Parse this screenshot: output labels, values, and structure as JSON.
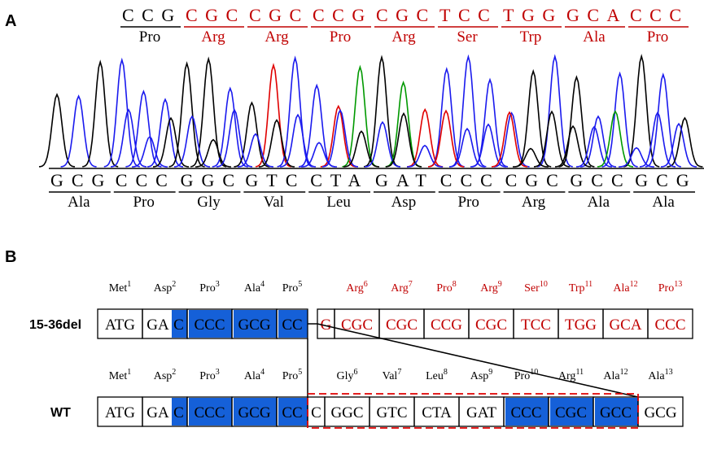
{
  "panel_a": {
    "label": "A",
    "top": {
      "codons": [
        "CCG",
        "CGC",
        "CGC",
        "CCG",
        "CGC",
        "TCC",
        "TGG",
        "GCA",
        "CCC"
      ],
      "amino_acids": [
        "Pro",
        "Arg",
        "Arg",
        "Pro",
        "Arg",
        "Ser",
        "Trp",
        "Ala",
        "Pro"
      ],
      "colors": [
        "#000000",
        "#c00000",
        "#c00000",
        "#c00000",
        "#c00000",
        "#c00000",
        "#c00000",
        "#c00000",
        "#c00000"
      ]
    },
    "bottom": {
      "codons": [
        "GCG",
        "CCC",
        "GGC",
        "GTC",
        "CTA",
        "GAT",
        "CCC",
        "CGC",
        "GCC",
        "GCG"
      ],
      "amino_acids": [
        "Ala",
        "Pro",
        "Gly",
        "Val",
        "Leu",
        "Asp",
        "Pro",
        "Arg",
        "Ala",
        "Ala"
      ]
    },
    "trace_colors": {
      "A": "#009900",
      "C": "#1a1aee",
      "G": "#000000",
      "T": "#e00000"
    }
  },
  "panel_b": {
    "label": "B",
    "rows": [
      {
        "name": "15-36del",
        "residues": [
          {
            "name": "Met",
            "number": 1,
            "color": "#000000"
          },
          {
            "name": "Asp",
            "number": 2,
            "color": "#000000"
          },
          {
            "name": "Pro",
            "number": 3,
            "color": "#000000"
          },
          {
            "name": "Ala",
            "number": 4,
            "color": "#000000"
          },
          {
            "name": "Pro",
            "number": 5,
            "color": "#000000"
          },
          {
            "name": "Arg",
            "number": 6,
            "color": "#c00000"
          },
          {
            "name": "Arg",
            "number": 7,
            "color": "#c00000"
          },
          {
            "name": "Pro",
            "number": 8,
            "color": "#c00000"
          },
          {
            "name": "Arg",
            "number": 9,
            "color": "#c00000"
          },
          {
            "name": "Ser",
            "number": 10,
            "color": "#c00000"
          },
          {
            "name": "Trp",
            "number": 11,
            "color": "#c00000"
          },
          {
            "name": "Ala",
            "number": 12,
            "color": "#c00000"
          },
          {
            "name": "Pro",
            "number": 13,
            "color": "#c00000"
          }
        ],
        "cells": [
          {
            "parts": [
              {
                "text": "ATG"
              }
            ],
            "color": "#000000"
          },
          {
            "parts": [
              {
                "text": "GA"
              },
              {
                "text": "C",
                "fill": "#1560d8"
              }
            ],
            "color": "#000000"
          },
          {
            "parts": [
              {
                "text": "CCC",
                "fill": "#1560d8"
              }
            ],
            "color": "#000000"
          },
          {
            "parts": [
              {
                "text": "GCG",
                "fill": "#1560d8"
              }
            ],
            "color": "#000000"
          },
          {
            "parts": [
              {
                "text": "CC",
                "fill": "#1560d8"
              }
            ],
            "color": "#000000"
          },
          {
            "parts": [
              {
                "text": "G"
              }
            ],
            "color": "#c00000"
          },
          {
            "parts": [
              {
                "text": "CGC"
              }
            ],
            "color": "#c00000"
          },
          {
            "parts": [
              {
                "text": "CGC"
              }
            ],
            "color": "#c00000"
          },
          {
            "parts": [
              {
                "text": "CCG"
              }
            ],
            "color": "#c00000"
          },
          {
            "parts": [
              {
                "text": "CGC"
              }
            ],
            "color": "#c00000"
          },
          {
            "parts": [
              {
                "text": "TCC"
              }
            ],
            "color": "#c00000"
          },
          {
            "parts": [
              {
                "text": "TGG"
              }
            ],
            "color": "#c00000"
          },
          {
            "parts": [
              {
                "text": "GCA"
              }
            ],
            "color": "#c00000"
          },
          {
            "parts": [
              {
                "text": "CCC"
              }
            ],
            "color": "#c00000"
          }
        ]
      },
      {
        "name": "WT",
        "residues": [
          {
            "name": "Met",
            "number": 1,
            "color": "#000000"
          },
          {
            "name": "Asp",
            "number": 2,
            "color": "#000000"
          },
          {
            "name": "Pro",
            "number": 3,
            "color": "#000000"
          },
          {
            "name": "Ala",
            "number": 4,
            "color": "#000000"
          },
          {
            "name": "Pro",
            "number": 5,
            "color": "#000000"
          },
          {
            "name": "Gly",
            "number": 6,
            "color": "#000000"
          },
          {
            "name": "Val",
            "number": 7,
            "color": "#000000"
          },
          {
            "name": "Leu",
            "number": 8,
            "color": "#000000"
          },
          {
            "name": "Asp",
            "number": 9,
            "color": "#000000"
          },
          {
            "name": "Pro",
            "number": 10,
            "color": "#000000"
          },
          {
            "name": "Arg",
            "number": 11,
            "color": "#000000"
          },
          {
            "name": "Ala",
            "number": 12,
            "color": "#000000"
          },
          {
            "name": "Ala",
            "number": 13,
            "color": "#000000"
          }
        ],
        "cells": [
          {
            "parts": [
              {
                "text": "ATG"
              }
            ],
            "color": "#000000"
          },
          {
            "parts": [
              {
                "text": "GA"
              },
              {
                "text": "C",
                "fill": "#1560d8"
              }
            ],
            "color": "#000000"
          },
          {
            "parts": [
              {
                "text": "CCC",
                "fill": "#1560d8"
              }
            ],
            "color": "#000000"
          },
          {
            "parts": [
              {
                "text": "GCG",
                "fill": "#1560d8"
              }
            ],
            "color": "#000000"
          },
          {
            "parts": [
              {
                "text": "CC",
                "fill": "#1560d8"
              }
            ],
            "color": "#000000"
          },
          {
            "parts": [
              {
                "text": "C"
              }
            ],
            "color": "#000000"
          },
          {
            "parts": [
              {
                "text": "GGC"
              }
            ],
            "color": "#000000"
          },
          {
            "parts": [
              {
                "text": "GTC"
              }
            ],
            "color": "#000000"
          },
          {
            "parts": [
              {
                "text": "CTA"
              }
            ],
            "color": "#000000"
          },
          {
            "parts": [
              {
                "text": "GAT"
              }
            ],
            "color": "#000000"
          },
          {
            "parts": [
              {
                "text": "CCC",
                "fill": "#1560d8"
              }
            ],
            "color": "#000000"
          },
          {
            "parts": [
              {
                "text": "CGC",
                "fill": "#1560d8"
              }
            ],
            "color": "#000000"
          },
          {
            "parts": [
              {
                "text": "GCC",
                "fill": "#1560d8"
              }
            ],
            "color": "#000000"
          },
          {
            "parts": [
              {
                "text": "GCG"
              }
            ],
            "color": "#000000"
          }
        ]
      }
    ]
  }
}
